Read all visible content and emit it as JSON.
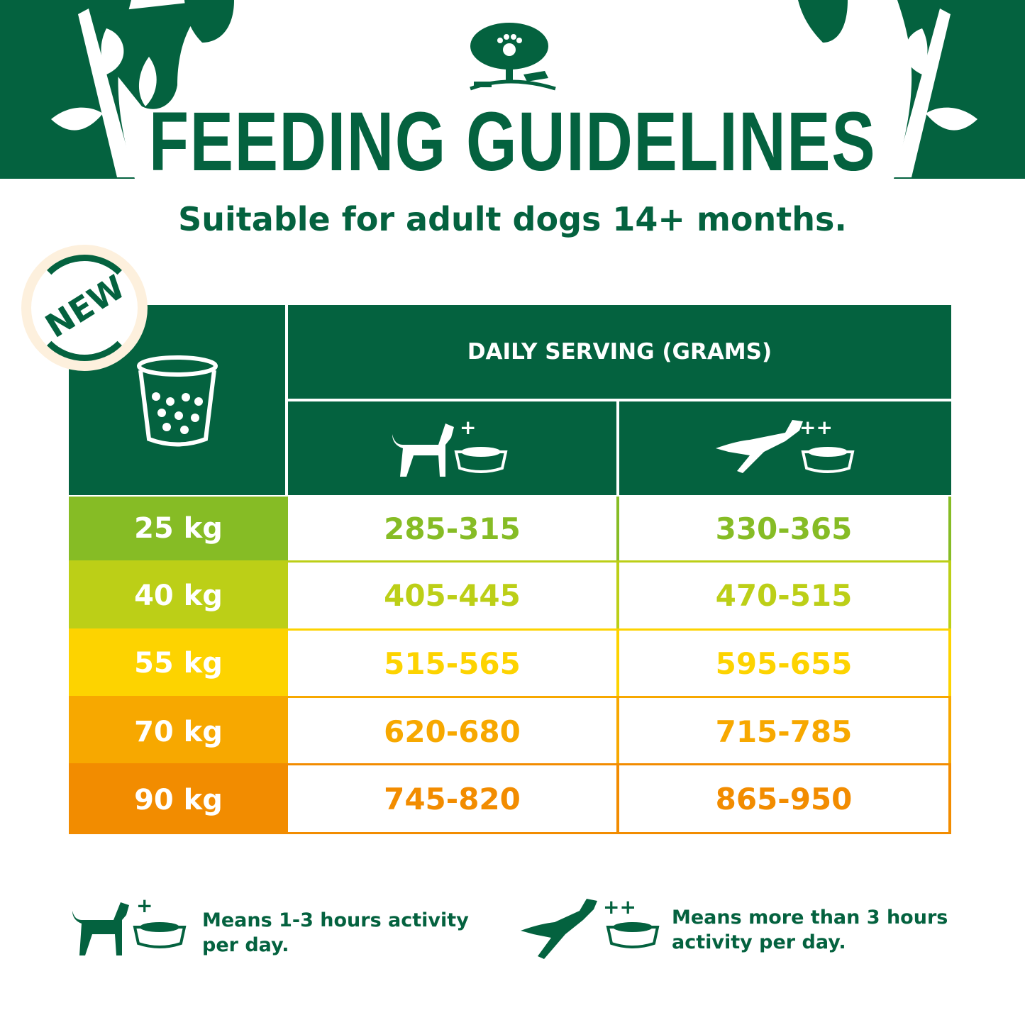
{
  "header": {
    "title": "FEEDING GUIDELINES",
    "subtitle": "Suitable for adult dogs 14+ months.",
    "badge": "NEW",
    "logo": "tree-paw-logo"
  },
  "table": {
    "column_header": "DAILY SERVING (GRAMS)",
    "activity_columns": [
      {
        "icon": "dog-bowl-icon",
        "marker": "+"
      },
      {
        "icon": "jumping-dog-bowl-icon",
        "marker": "++"
      }
    ],
    "rows": [
      {
        "weight": "25 kg",
        "moderate": "285-315",
        "high": "330-365",
        "color": "#86bc25"
      },
      {
        "weight": "40 kg",
        "moderate": "405-445",
        "high": "470-515",
        "color": "#bccf17"
      },
      {
        "weight": "55 kg",
        "moderate": "515-565",
        "high": "595-655",
        "color": "#fdd300"
      },
      {
        "weight": "70 kg",
        "moderate": "620-680",
        "high": "715-785",
        "color": "#f7a800"
      },
      {
        "weight": "90 kg",
        "moderate": "745-820",
        "high": "865-950",
        "color": "#f28c00"
      }
    ]
  },
  "legend": [
    {
      "marker": "+",
      "text": "Means 1-3 hours activity per day."
    },
    {
      "marker": "++",
      "text": "Means more than 3 hours activity per day."
    }
  ],
  "colors": {
    "brand_green": "#04623f"
  }
}
